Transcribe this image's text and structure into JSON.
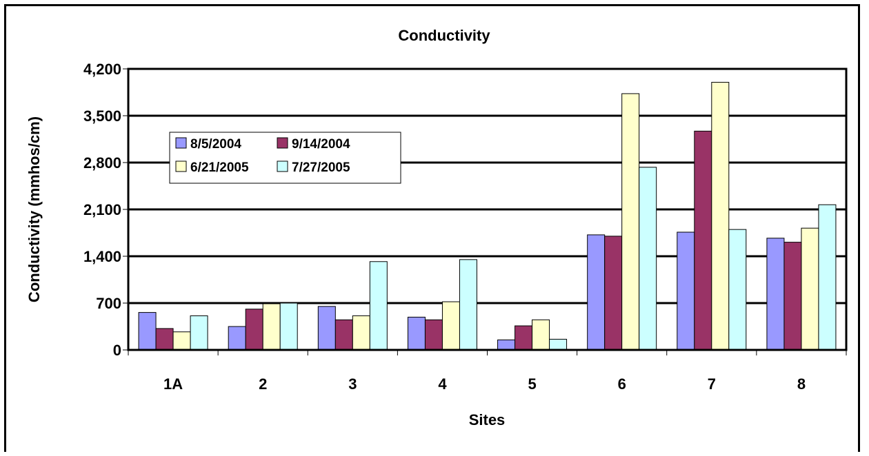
{
  "chart_data": {
    "type": "bar",
    "title": "Conductivity",
    "xlabel": "Sites",
    "ylabel": "Conductivity (mmhos/cm)",
    "categories": [
      "1A",
      "2",
      "3",
      "4",
      "5",
      "6",
      "7",
      "8"
    ],
    "ylim": [
      0,
      4200
    ],
    "yticks": [
      0,
      700,
      1400,
      2100,
      2800,
      3500,
      4200
    ],
    "ytick_labels": [
      "0",
      "700",
      "1,400",
      "2,100",
      "2,800",
      "3,500",
      "4,200"
    ],
    "grid": true,
    "legend_position": "upper-left inside plot",
    "series": [
      {
        "name": "8/5/2004",
        "color": "#9999ff",
        "values": [
          560,
          350,
          650,
          490,
          150,
          1720,
          1760,
          1670
        ]
      },
      {
        "name": "9/14/2004",
        "color": "#993366",
        "values": [
          320,
          610,
          450,
          450,
          360,
          1700,
          3270,
          1610
        ]
      },
      {
        "name": "6/21/2005",
        "color": "#ffffcc",
        "values": [
          270,
          690,
          510,
          720,
          450,
          3830,
          4000,
          1820
        ]
      },
      {
        "name": "7/27/2005",
        "color": "#ccffff",
        "values": [
          510,
          700,
          1320,
          1350,
          160,
          2730,
          1800,
          2170
        ]
      }
    ]
  }
}
